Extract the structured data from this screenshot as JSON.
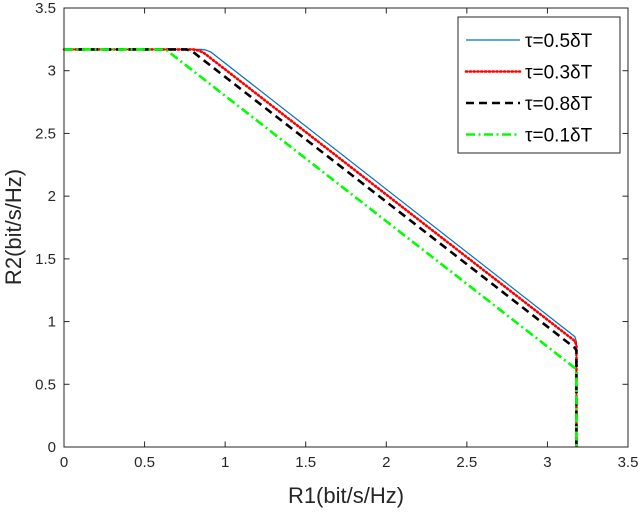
{
  "chart_data": {
    "type": "line",
    "title": "",
    "xlabel": "R1(bit/s/Hz)",
    "ylabel": "R2(bit/s/Hz)",
    "xlim": [
      0,
      3.5
    ],
    "ylim": [
      0,
      3.5
    ],
    "xticks": [
      "0",
      "0.5",
      "1",
      "1.5",
      "2",
      "2.5",
      "3",
      "3.5"
    ],
    "yticks": [
      "0",
      "0.5",
      "1",
      "1.5",
      "2",
      "2.5",
      "3",
      "3.5"
    ],
    "grid": false,
    "legend_position": "top-right",
    "series": [
      {
        "name": "τ=0.5δT",
        "color": "#0072BD",
        "style": "solid",
        "points": [
          [
            0,
            3.17
          ],
          [
            0.85,
            3.17
          ],
          [
            0.88,
            3.165
          ],
          [
            0.91,
            3.15
          ],
          [
            0.94,
            3.12
          ],
          [
            3.17,
            0.88
          ],
          [
            3.18,
            0.84
          ],
          [
            3.18,
            0
          ]
        ]
      },
      {
        "name": "τ=0.3δT",
        "color": "#FF0000",
        "style": "dotted",
        "points": [
          [
            0,
            3.17
          ],
          [
            0.8,
            3.17
          ],
          [
            0.84,
            3.16
          ],
          [
            0.87,
            3.14
          ],
          [
            3.17,
            0.845
          ],
          [
            3.18,
            0.81
          ],
          [
            3.18,
            0
          ]
        ]
      },
      {
        "name": "τ=0.8δT",
        "color": "#000000",
        "style": "dashed",
        "points": [
          [
            0,
            3.17
          ],
          [
            0.76,
            3.17
          ],
          [
            0.8,
            3.15
          ],
          [
            3.17,
            0.79
          ],
          [
            3.18,
            0.77
          ],
          [
            3.18,
            0
          ]
        ]
      },
      {
        "name": "τ=0.1δT",
        "color": "#00FF00",
        "style": "dashdot",
        "points": [
          [
            0,
            3.17
          ],
          [
            0.63,
            3.17
          ],
          [
            0.66,
            3.14
          ],
          [
            3.17,
            0.63
          ],
          [
            3.18,
            0.6
          ],
          [
            3.18,
            0
          ]
        ]
      }
    ]
  }
}
